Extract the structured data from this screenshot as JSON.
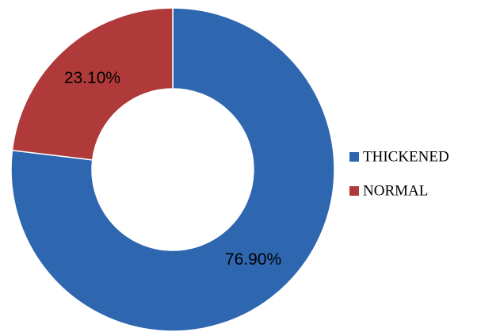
{
  "chart_data": {
    "type": "donut",
    "categories": [
      "THICKENED",
      "NORMAL"
    ],
    "values": [
      76.9,
      23.1
    ],
    "value_labels": [
      "76.90%",
      "23.10%"
    ],
    "colors": [
      "#2e67b0",
      "#b03a3a"
    ],
    "legend": "right"
  }
}
